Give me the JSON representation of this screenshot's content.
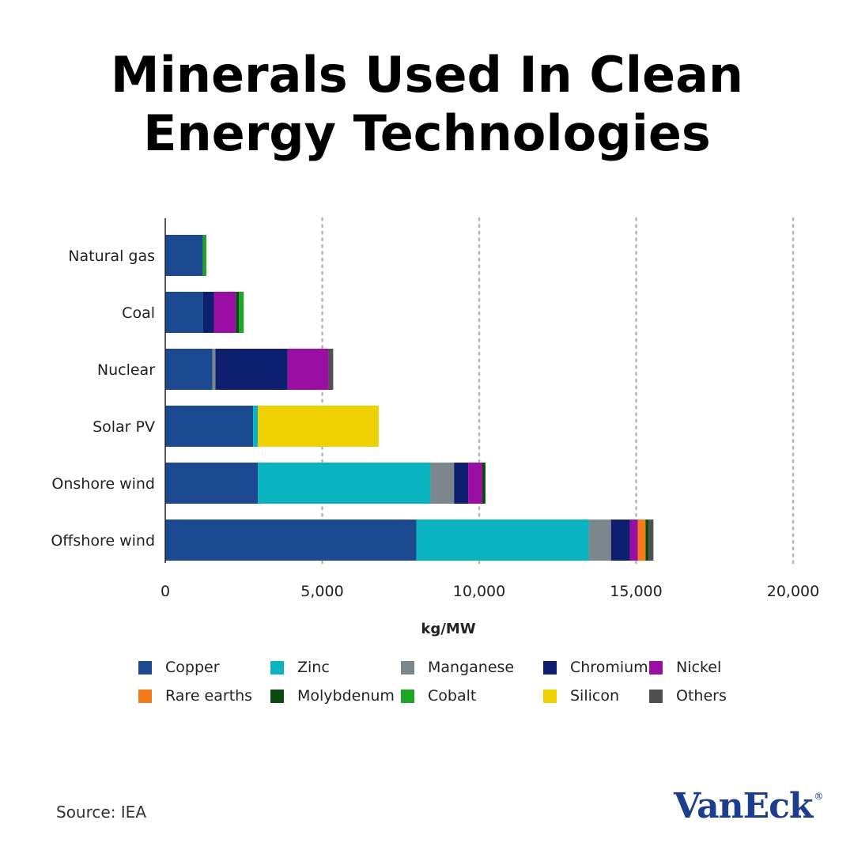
{
  "chart_data": {
    "type": "bar",
    "orientation": "horizontal",
    "stacked": true,
    "title": "Minerals Used In Clean Energy Technologies",
    "title_lines": [
      "Minerals Used In Clean",
      "Energy Technologies"
    ],
    "xlabel": "kg/MW",
    "ylabel": "",
    "xlim": [
      0,
      20000
    ],
    "xticks": [
      0,
      5000,
      10000,
      15000,
      20000
    ],
    "xtick_labels": [
      "0",
      "5,000",
      "10,000",
      "15,000",
      "20,000"
    ],
    "grid": "vertical dotted",
    "legend_position": "bottom",
    "categories": [
      "Natural gas",
      "Coal",
      "Nuclear",
      "Solar PV",
      "Onshore wind",
      "Offshore wind"
    ],
    "series": [
      {
        "name": "Copper",
        "color": "#1c4a90",
        "values": [
          1200,
          1200,
          1500,
          2800,
          2950,
          8000
        ]
      },
      {
        "name": "Zinc",
        "color": "#0bb3c1",
        "values": [
          0,
          0,
          0,
          150,
          5500,
          5500
        ]
      },
      {
        "name": "Manganese",
        "color": "#7d868d",
        "values": [
          0,
          0,
          100,
          0,
          750,
          700
        ]
      },
      {
        "name": "Chromium",
        "color": "#0d1f6e",
        "values": [
          0,
          350,
          2300,
          0,
          450,
          600
        ]
      },
      {
        "name": "Nickel",
        "color": "#9a0ea3",
        "values": [
          0,
          700,
          1300,
          0,
          450,
          250
        ]
      },
      {
        "name": "Rare earths",
        "color": "#f47a1b",
        "values": [
          0,
          0,
          0,
          0,
          0,
          250
        ]
      },
      {
        "name": "Molybdenum",
        "color": "#0a4a10",
        "values": [
          0,
          100,
          0,
          0,
          100,
          100
        ]
      },
      {
        "name": "Cobalt",
        "color": "#1ea525",
        "values": [
          110,
          150,
          0,
          0,
          0,
          0
        ]
      },
      {
        "name": "Silicon",
        "color": "#efd000",
        "values": [
          0,
          0,
          0,
          3850,
          0,
          0
        ]
      },
      {
        "name": "Others",
        "color": "#505050",
        "values": [
          0,
          0,
          150,
          0,
          0,
          150
        ]
      }
    ]
  },
  "source": "Source: IEA",
  "logo": {
    "name": "VanEck",
    "mark": "®"
  }
}
